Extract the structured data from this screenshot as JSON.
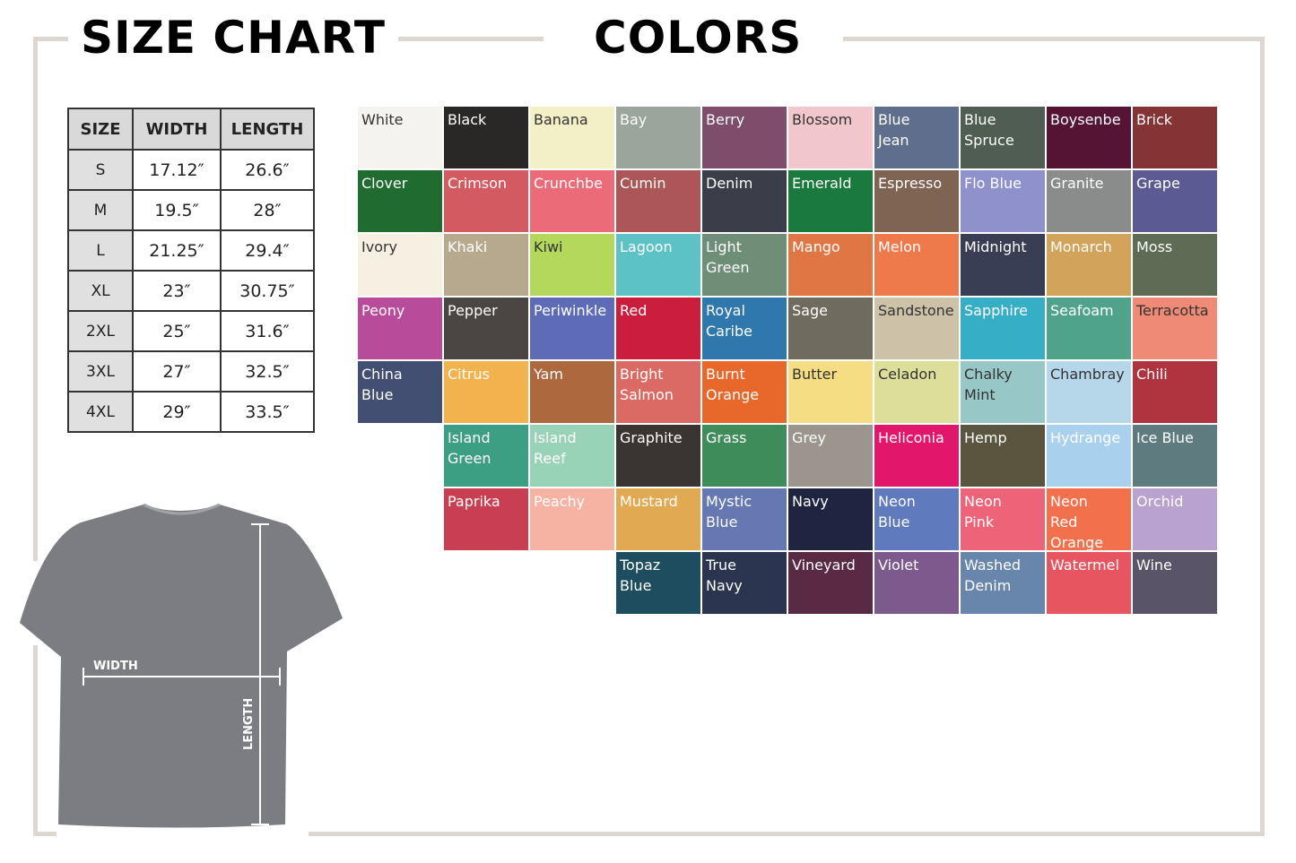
{
  "headings": {
    "size_chart": "SIZE CHART",
    "colors": "COLORS"
  },
  "size_table": {
    "headers": [
      "SIZE",
      "WIDTH",
      "LENGTH"
    ],
    "rows": [
      [
        "S",
        "17.12″",
        "26.6″"
      ],
      [
        "M",
        "19.5″",
        "28″"
      ],
      [
        "L",
        "21.25″",
        "29.4″"
      ],
      [
        "XL",
        "23″",
        "30.75″"
      ],
      [
        "2XL",
        "25″",
        "31.6″"
      ],
      [
        "3XL",
        "27″",
        "32.5″"
      ],
      [
        "4XL",
        "29″",
        "33.5″"
      ]
    ]
  },
  "diagram": {
    "width_label": "WIDTH",
    "length_label": "LENGTH",
    "shirt_color": "#7b7d82"
  },
  "colors": [
    [
      {
        "name": "White",
        "hex": "#f5f3ef",
        "dark": true
      },
      {
        "name": "Black",
        "hex": "#2a2827"
      },
      {
        "name": "Banana",
        "hex": "#f3efc6",
        "dark": true
      },
      {
        "name": "Bay",
        "hex": "#9aa59c"
      },
      {
        "name": "Berry",
        "hex": "#7e4d6c"
      },
      {
        "name": "Blossom",
        "hex": "#f2c7cb",
        "dark": true
      },
      {
        "name": "Blue\nJean",
        "hex": "#5f6e8c"
      },
      {
        "name": "Blue\nSpruce",
        "hex": "#4f5d52"
      },
      {
        "name": "Boysenbe",
        "hex": "#561435"
      },
      {
        "name": "Brick",
        "hex": "#853436"
      }
    ],
    [
      {
        "name": "Clover",
        "hex": "#1f6b30"
      },
      {
        "name": "Crimson",
        "hex": "#d35a60"
      },
      {
        "name": "Crunchbe",
        "hex": "#ec6b78"
      },
      {
        "name": "Cumin",
        "hex": "#ac5658"
      },
      {
        "name": "Denim",
        "hex": "#3b3e48"
      },
      {
        "name": "Emerald",
        "hex": "#1a7a3d"
      },
      {
        "name": "Espresso",
        "hex": "#7f6353"
      },
      {
        "name": "Flo Blue",
        "hex": "#8e91cc"
      },
      {
        "name": "Granite",
        "hex": "#8a8c8c"
      },
      {
        "name": "Grape",
        "hex": "#5c5a92"
      }
    ],
    [
      {
        "name": "Ivory",
        "hex": "#f5f0e2",
        "dark": true
      },
      {
        "name": "Khaki",
        "hex": "#b6a98e"
      },
      {
        "name": "Kiwi",
        "hex": "#b3d85c",
        "dark": true
      },
      {
        "name": "Lagoon",
        "hex": "#5cc2c5"
      },
      {
        "name": "Light\nGreen",
        "hex": "#6f8e78"
      },
      {
        "name": "Mango",
        "hex": "#df7644"
      },
      {
        "name": "Melon",
        "hex": "#ee7a4c"
      },
      {
        "name": "Midnight",
        "hex": "#393e54"
      },
      {
        "name": "Monarch",
        "hex": "#d2a35a"
      },
      {
        "name": "Moss",
        "hex": "#5e6b55"
      }
    ],
    [
      {
        "name": "Peony",
        "hex": "#b84c9b"
      },
      {
        "name": "Pepper",
        "hex": "#4b4643"
      },
      {
        "name": "Periwinkle",
        "hex": "#5e6bb7"
      },
      {
        "name": "Red",
        "hex": "#cb1e3c"
      },
      {
        "name": "Royal\nCaribe",
        "hex": "#2f78ad"
      },
      {
        "name": "Sage",
        "hex": "#6f6b5e"
      },
      {
        "name": "Sandstone",
        "hex": "#cdc2a8",
        "dark": true
      },
      {
        "name": "Sapphire",
        "hex": "#35aec6"
      },
      {
        "name": "Seafoam",
        "hex": "#4fa38a"
      },
      {
        "name": "Terracotta",
        "hex": "#ee8a75",
        "dark": true
      }
    ],
    [
      {
        "name": "China\nBlue",
        "hex": "#434f72"
      },
      {
        "name": "Citrus",
        "hex": "#f2b24e"
      },
      {
        "name": "Yam",
        "hex": "#ad683e"
      },
      {
        "name": "Bright\nSalmon",
        "hex": "#da6a63"
      },
      {
        "name": "Burnt\nOrange",
        "hex": "#e8672b"
      },
      {
        "name": "Butter",
        "hex": "#f4dd82",
        "dark": true
      },
      {
        "name": "Celadon",
        "hex": "#dcdf9a",
        "dark": true
      },
      {
        "name": "Chalky\nMint",
        "hex": "#97c7c6",
        "dark": true
      },
      {
        "name": "Chambray",
        "hex": "#b5d7e9",
        "dark": true
      },
      {
        "name": "Chili",
        "hex": "#b03440"
      }
    ],
    [
      {
        "name": "Island\nGreen",
        "hex": "#3c9e82"
      },
      {
        "name": "Island\nReef",
        "hex": "#98d3b7"
      },
      {
        "name": "Graphite",
        "hex": "#3a3432"
      },
      {
        "name": "Grass",
        "hex": "#3e8c5a"
      },
      {
        "name": "Grey",
        "hex": "#9b958e"
      },
      {
        "name": "Heliconia",
        "hex": "#e2166a"
      },
      {
        "name": "Hemp",
        "hex": "#59553f"
      },
      {
        "name": "Hydrange",
        "hex": "#a9d0ec"
      },
      {
        "name": "Ice Blue",
        "hex": "#5e7c80"
      }
    ],
    [
      {
        "name": "Paprika",
        "hex": "#c73f50"
      },
      {
        "name": "Peachy",
        "hex": "#f6b3a3"
      },
      {
        "name": "Mustard",
        "hex": "#e1aa52"
      },
      {
        "name": "Mystic\nBlue",
        "hex": "#6578b1"
      },
      {
        "name": "Navy",
        "hex": "#1f2540"
      },
      {
        "name": "Neon\nBlue",
        "hex": "#5f7bbd"
      },
      {
        "name": "Neon\nPink",
        "hex": "#ed6479"
      },
      {
        "name": "Neon\nRed\nOrange",
        "hex": "#f2704c"
      },
      {
        "name": "Orchid",
        "hex": "#b9a2cf"
      }
    ],
    [
      {
        "name": "Topaz\nBlue",
        "hex": "#1d4d5e"
      },
      {
        "name": "True\nNavy",
        "hex": "#2c3550"
      },
      {
        "name": "Vineyard",
        "hex": "#5a2a45"
      },
      {
        "name": "Violet",
        "hex": "#7d5a8d"
      },
      {
        "name": "Washed\nDenim",
        "hex": "#6886ac"
      },
      {
        "name": "Watermel",
        "hex": "#e65560"
      },
      {
        "name": "Wine",
        "hex": "#5a5468"
      }
    ]
  ]
}
